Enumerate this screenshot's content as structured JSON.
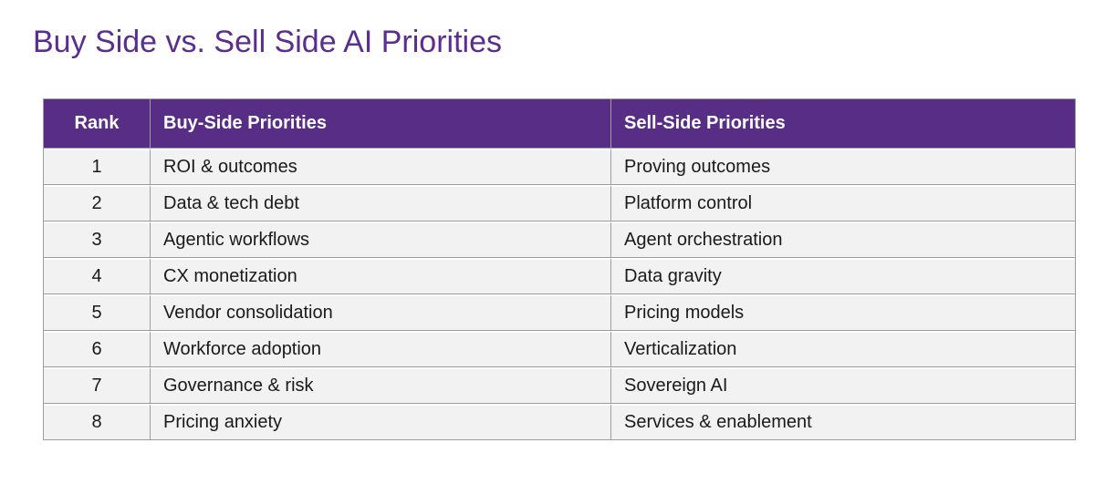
{
  "title": "Buy Side vs. Sell Side AI Priorities",
  "colors": {
    "title_text": "#5B2D90",
    "header_bg": "#582D86",
    "header_text": "#FFFFFF",
    "row_bg": "#F2F2F2",
    "grid_line": "#9D9D9D",
    "body_text": "#1A1A1A"
  },
  "table": {
    "columns": [
      "Rank",
      "Buy-Side Priorities",
      "Sell-Side Priorities"
    ],
    "rows": [
      {
        "rank": "1",
        "buy": "ROI & outcomes",
        "sell": "Proving outcomes"
      },
      {
        "rank": "2",
        "buy": "Data & tech debt",
        "sell": "Platform control"
      },
      {
        "rank": "3",
        "buy": "Agentic workflows",
        "sell": "Agent orchestration"
      },
      {
        "rank": "4",
        "buy": "CX monetization",
        "sell": "Data gravity"
      },
      {
        "rank": "5",
        "buy": "Vendor consolidation",
        "sell": "Pricing models"
      },
      {
        "rank": "6",
        "buy": "Workforce adoption",
        "sell": "Verticalization"
      },
      {
        "rank": "7",
        "buy": "Governance & risk",
        "sell": "Sovereign AI"
      },
      {
        "rank": "8",
        "buy": "Pricing anxiety",
        "sell": "Services & enablement"
      }
    ]
  }
}
